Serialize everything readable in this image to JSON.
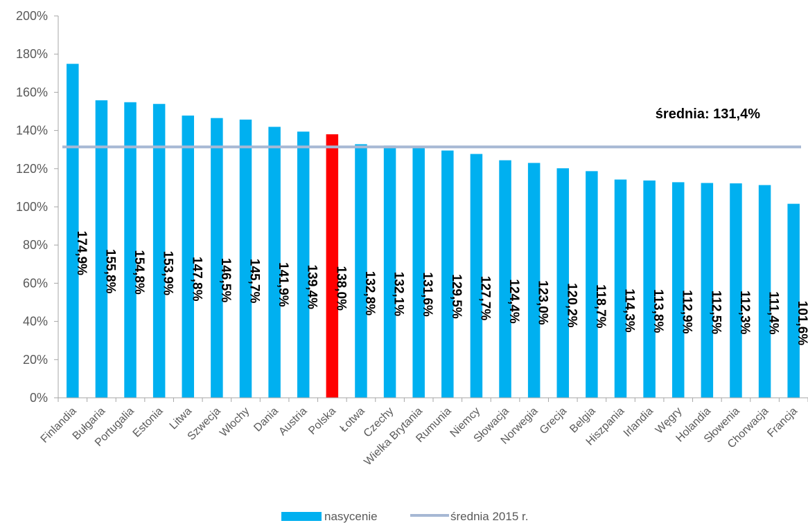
{
  "chart_data": {
    "type": "bar",
    "categories": [
      "Finlandia",
      "Bułgaria",
      "Portugalia",
      "Estonia",
      "Litwa",
      "Szwecja",
      "Włochy",
      "Dania",
      "Austria",
      "Polska",
      "Łotwa",
      "Czechy",
      "Wielka Brytania",
      "Rumunia",
      "Niemcy",
      "Słowacja",
      "Norwegia",
      "Grecja",
      "Belgia",
      "Hiszpania",
      "Irlandia",
      "Węgry",
      "Holandia",
      "Słowenia",
      "Chorwacja",
      "Francja"
    ],
    "series": [
      {
        "name": "nasycenie",
        "values": [
          174.9,
          155.8,
          154.8,
          153.9,
          147.8,
          146.5,
          145.7,
          141.9,
          139.4,
          138.0,
          132.8,
          132.1,
          131.6,
          129.5,
          127.7,
          124.4,
          123.0,
          120.2,
          118.7,
          114.3,
          113.8,
          112.9,
          112.5,
          112.3,
          111.4,
          101.6
        ],
        "labels": [
          "174,9%",
          "155,8%",
          "154,8%",
          "153,9%",
          "147,8%",
          "146,5%",
          "145,7%",
          "141,9%",
          "139,4%",
          "138,0%",
          "132,8%",
          "132,1%",
          "131,6%",
          "129,5%",
          "127,7%",
          "124,4%",
          "123,0%",
          "120,2%",
          "118,7%",
          "114,3%",
          "113,8%",
          "112,9%",
          "112,5%",
          "112,3%",
          "111,4%",
          "101,6%"
        ]
      }
    ],
    "average": {
      "name": "średnia 2015 r.",
      "value": 131.4,
      "annotation": "średnia: 131,4%"
    },
    "highlight_category": "Polska",
    "ylim": [
      0,
      200
    ],
    "yticks": [
      "0%",
      "20%",
      "40%",
      "60%",
      "80%",
      "100%",
      "120%",
      "140%",
      "160%",
      "180%",
      "200%"
    ],
    "ytick_values": [
      0,
      20,
      40,
      60,
      80,
      100,
      120,
      140,
      160,
      180,
      200
    ],
    "title": "",
    "xlabel": "",
    "ylabel": "",
    "grid": false,
    "legend_position": "bottom",
    "colors": {
      "bar": "#00B0F0",
      "highlight": "#FF0000",
      "average_line": "#A6B8D4",
      "axis": "#A6A6A6",
      "text": "#595959"
    }
  },
  "legend": {
    "bars_label": "nasycenie",
    "line_label": "średnia 2015 r."
  }
}
